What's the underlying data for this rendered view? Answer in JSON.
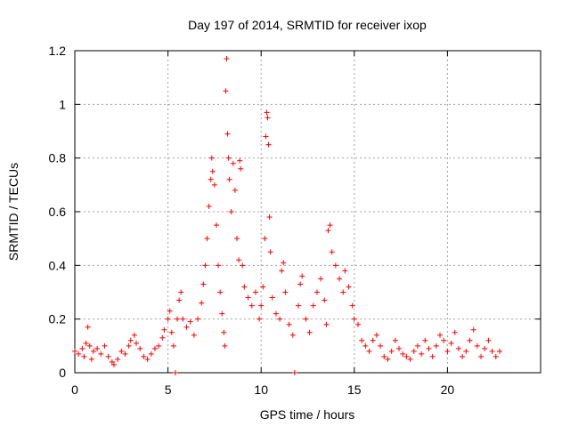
{
  "chart_data": {
    "type": "scatter",
    "title": "Day 197 of 2014, SRMTID for receiver ixop",
    "xlabel": "GPS time / hours",
    "ylabel": "SRMTID / TECUs",
    "xlim": [
      0,
      25
    ],
    "ylim": [
      0,
      1.2
    ],
    "xticks": [
      0,
      5,
      10,
      15,
      20
    ],
    "yticks": [
      0,
      0.2,
      0.4,
      0.6,
      0.8,
      1,
      1.2
    ],
    "xtick_labels": [
      "0",
      "5",
      "10",
      "15",
      "20"
    ],
    "ytick_labels": [
      "0",
      "0.2",
      "0.4",
      "0.6",
      "0.8",
      "1",
      "1.2"
    ],
    "grid": true,
    "marker": "+",
    "color": "#ff0000",
    "series": [
      {
        "name": "SRMTID",
        "points": [
          [
            0.0,
            0.08
          ],
          [
            0.2,
            0.07
          ],
          [
            0.4,
            0.09
          ],
          [
            0.5,
            0.06
          ],
          [
            0.6,
            0.11
          ],
          [
            0.7,
            0.17
          ],
          [
            0.8,
            0.1
          ],
          [
            0.9,
            0.05
          ],
          [
            1.0,
            0.08
          ],
          [
            1.2,
            0.09
          ],
          [
            1.4,
            0.07
          ],
          [
            1.6,
            0.1
          ],
          [
            1.8,
            0.06
          ],
          [
            2.0,
            0.04
          ],
          [
            2.1,
            0.03
          ],
          [
            2.3,
            0.05
          ],
          [
            2.5,
            0.08
          ],
          [
            2.7,
            0.07
          ],
          [
            2.9,
            0.1
          ],
          [
            3.0,
            0.12
          ],
          [
            3.2,
            0.14
          ],
          [
            3.3,
            0.11
          ],
          [
            3.5,
            0.09
          ],
          [
            3.7,
            0.06
          ],
          [
            3.9,
            0.05
          ],
          [
            4.1,
            0.07
          ],
          [
            4.3,
            0.09
          ],
          [
            4.5,
            0.1
          ],
          [
            4.7,
            0.13
          ],
          [
            4.8,
            0.16
          ],
          [
            5.0,
            0.2
          ],
          [
            5.1,
            0.23
          ],
          [
            5.2,
            0.15
          ],
          [
            5.3,
            0.1
          ],
          [
            5.4,
            0.0
          ],
          [
            5.5,
            0.2
          ],
          [
            5.6,
            0.27
          ],
          [
            5.7,
            0.3
          ],
          [
            5.8,
            0.2
          ],
          [
            6.0,
            0.17
          ],
          [
            6.2,
            0.19
          ],
          [
            6.4,
            0.14
          ],
          [
            6.6,
            0.2
          ],
          [
            6.8,
            0.26
          ],
          [
            6.9,
            0.33
          ],
          [
            7.0,
            0.4
          ],
          [
            7.1,
            0.5
          ],
          [
            7.2,
            0.62
          ],
          [
            7.3,
            0.72
          ],
          [
            7.35,
            0.8
          ],
          [
            7.4,
            0.75
          ],
          [
            7.5,
            0.7
          ],
          [
            7.6,
            0.55
          ],
          [
            7.7,
            0.4
          ],
          [
            7.8,
            0.3
          ],
          [
            7.9,
            0.22
          ],
          [
            8.0,
            0.15
          ],
          [
            8.05,
            0.1
          ],
          [
            8.1,
            1.05
          ],
          [
            8.15,
            1.17
          ],
          [
            8.2,
            0.89
          ],
          [
            8.25,
            0.8
          ],
          [
            8.3,
            0.72
          ],
          [
            8.4,
            0.6
          ],
          [
            8.5,
            0.78
          ],
          [
            8.6,
            0.68
          ],
          [
            8.7,
            0.5
          ],
          [
            8.8,
            0.42
          ],
          [
            8.85,
            0.79
          ],
          [
            8.9,
            0.76
          ],
          [
            9.0,
            0.4
          ],
          [
            9.1,
            0.32
          ],
          [
            9.3,
            0.28
          ],
          [
            9.5,
            0.25
          ],
          [
            9.7,
            0.3
          ],
          [
            9.9,
            0.2
          ],
          [
            10.0,
            0.25
          ],
          [
            10.1,
            0.32
          ],
          [
            10.2,
            0.5
          ],
          [
            10.25,
            0.88
          ],
          [
            10.3,
            0.97
          ],
          [
            10.35,
            0.95
          ],
          [
            10.4,
            0.85
          ],
          [
            10.45,
            0.58
          ],
          [
            10.5,
            0.45
          ],
          [
            10.6,
            0.28
          ],
          [
            10.8,
            0.22
          ],
          [
            11.0,
            0.2
          ],
          [
            11.1,
            0.38
          ],
          [
            11.2,
            0.41
          ],
          [
            11.3,
            0.3
          ],
          [
            11.5,
            0.18
          ],
          [
            11.7,
            0.14
          ],
          [
            11.8,
            0.0
          ],
          [
            12.0,
            0.25
          ],
          [
            12.1,
            0.33
          ],
          [
            12.2,
            0.36
          ],
          [
            12.4,
            0.2
          ],
          [
            12.6,
            0.15
          ],
          [
            12.8,
            0.25
          ],
          [
            13.0,
            0.3
          ],
          [
            13.2,
            0.35
          ],
          [
            13.4,
            0.27
          ],
          [
            13.5,
            0.18
          ],
          [
            13.6,
            0.53
          ],
          [
            13.7,
            0.55
          ],
          [
            13.8,
            0.45
          ],
          [
            14.0,
            0.4
          ],
          [
            14.2,
            0.35
          ],
          [
            14.4,
            0.3
          ],
          [
            14.5,
            0.38
          ],
          [
            14.7,
            0.32
          ],
          [
            14.9,
            0.25
          ],
          [
            15.0,
            0.2
          ],
          [
            15.2,
            0.18
          ],
          [
            15.4,
            0.12
          ],
          [
            15.6,
            0.1
          ],
          [
            15.8,
            0.08
          ],
          [
            16.0,
            0.12
          ],
          [
            16.2,
            0.14
          ],
          [
            16.4,
            0.1
          ],
          [
            16.6,
            0.06
          ],
          [
            16.8,
            0.05
          ],
          [
            17.0,
            0.08
          ],
          [
            17.2,
            0.12
          ],
          [
            17.4,
            0.09
          ],
          [
            17.6,
            0.07
          ],
          [
            17.8,
            0.06
          ],
          [
            18.0,
            0.05
          ],
          [
            18.2,
            0.08
          ],
          [
            18.4,
            0.1
          ],
          [
            18.6,
            0.07
          ],
          [
            18.8,
            0.12
          ],
          [
            19.0,
            0.09
          ],
          [
            19.2,
            0.06
          ],
          [
            19.4,
            0.1
          ],
          [
            19.6,
            0.14
          ],
          [
            19.8,
            0.12
          ],
          [
            20.0,
            0.08
          ],
          [
            20.2,
            0.11
          ],
          [
            20.4,
            0.15
          ],
          [
            20.6,
            0.09
          ],
          [
            20.8,
            0.06
          ],
          [
            21.0,
            0.08
          ],
          [
            21.2,
            0.12
          ],
          [
            21.4,
            0.16
          ],
          [
            21.6,
            0.1
          ],
          [
            21.8,
            0.06
          ],
          [
            22.0,
            0.09
          ],
          [
            22.2,
            0.12
          ],
          [
            22.4,
            0.08
          ],
          [
            22.6,
            0.06
          ],
          [
            22.8,
            0.08
          ]
        ]
      }
    ]
  }
}
